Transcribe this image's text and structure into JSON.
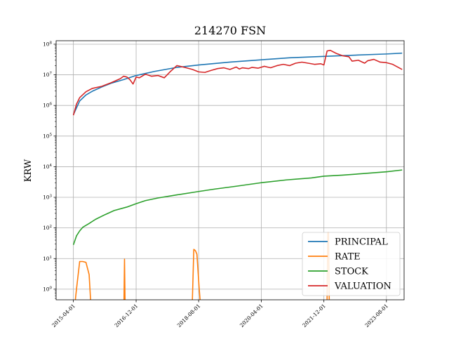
{
  "chart_data": {
    "type": "line",
    "title": "214270 FSN",
    "xlabel": "",
    "ylabel": "KRW",
    "yscale": "log",
    "ylim": [
      0.45,
      130000000
    ],
    "y_tick_values": [
      1,
      10,
      100,
      1000,
      10000,
      100000,
      1000000,
      10000000,
      100000000
    ],
    "y_tick_exponents": [
      "0",
      "1",
      "2",
      "3",
      "4",
      "5",
      "6",
      "7",
      "8"
    ],
    "x_tick_labels": [
      "2015-04-01",
      "2016-12-01",
      "2018-08-01",
      "2020-04-01",
      "2021-12-01",
      "2023-08-01"
    ],
    "xlim": [
      "2014-10-15",
      "2024-01-20"
    ],
    "grid": true,
    "legend_position": "lower-right",
    "series": [
      {
        "name": "PRINCIPAL",
        "color": "#1f77b4",
        "x": [
          "2015-04-01",
          "2015-06-01",
          "2015-08-01",
          "2015-10-01",
          "2016-01-01",
          "2016-04-01",
          "2016-08-01",
          "2016-12-01",
          "2017-06-01",
          "2018-01-01",
          "2018-08-01",
          "2019-06-01",
          "2020-04-01",
          "2021-01-01",
          "2021-12-01",
          "2022-10-01",
          "2023-08-01",
          "2024-01-01"
        ],
        "y": [
          500000,
          1400000,
          2200000,
          2900000,
          4000000,
          5300000,
          7000000,
          9500000,
          13000000,
          17500000,
          21000000,
          26000000,
          31000000,
          36000000,
          40000000,
          44000000,
          48000000,
          51000000
        ]
      },
      {
        "name": "RATE",
        "color": "#ff7f0e",
        "segments": [
          {
            "x": [
              "2015-04-20",
              "2015-05-01",
              "2015-06-01",
              "2015-07-01",
              "2015-08-01",
              "2015-09-01",
              "2015-09-15"
            ],
            "y": [
              0.45,
              1.0,
              8,
              8,
              7.5,
              3,
              0.45
            ]
          },
          {
            "x": [
              "2016-08-05",
              "2016-08-10",
              "2016-08-15"
            ],
            "y": [
              0.45,
              9.5,
              0.45
            ]
          },
          {
            "x": [
              "2018-06-01",
              "2018-06-15",
              "2018-07-01",
              "2018-07-15",
              "2018-08-05",
              "2018-08-15"
            ],
            "y": [
              0.45,
              20,
              18,
              14,
              1.2,
              0.45
            ]
          },
          {
            "x": [
              "2022-01-01",
              "2022-01-08",
              "2022-01-15",
              "2022-01-22"
            ],
            "y": [
              0.45,
              70,
              70,
              0.45
            ]
          }
        ]
      },
      {
        "name": "STOCK",
        "color": "#2ca02c",
        "x": [
          "2015-04-01",
          "2015-05-01",
          "2015-06-01",
          "2015-07-01",
          "2015-09-01",
          "2015-11-01",
          "2016-02-01",
          "2016-05-01",
          "2016-09-01",
          "2016-12-01",
          "2017-03-01",
          "2017-07-01",
          "2018-01-01",
          "2018-08-01",
          "2019-01-01",
          "2019-08-01",
          "2020-04-01",
          "2020-12-01",
          "2021-08-01",
          "2021-12-01",
          "2022-06-01",
          "2023-01-01",
          "2023-08-01",
          "2024-01-01"
        ],
        "y": [
          28,
          55,
          80,
          105,
          140,
          190,
          270,
          370,
          480,
          620,
          780,
          950,
          1200,
          1550,
          1850,
          2300,
          3000,
          3700,
          4300,
          4900,
          5300,
          6000,
          6800,
          7800
        ]
      },
      {
        "name": "VALUATION",
        "color": "#d62728",
        "x": [
          "2015-04-01",
          "2015-05-01",
          "2015-06-01",
          "2015-08-01",
          "2015-10-01",
          "2016-01-01",
          "2016-04-01",
          "2016-07-01",
          "2016-08-01",
          "2016-09-01",
          "2016-10-01",
          "2016-11-01",
          "2016-12-01",
          "2017-01-01",
          "2017-03-01",
          "2017-05-01",
          "2017-07-01",
          "2017-09-01",
          "2017-11-01",
          "2018-01-01",
          "2018-02-01",
          "2018-04-01",
          "2018-06-01",
          "2018-08-01",
          "2018-10-01",
          "2018-12-01",
          "2019-02-01",
          "2019-04-01",
          "2019-06-01",
          "2019-08-01",
          "2019-09-01",
          "2019-10-01",
          "2019-12-01",
          "2020-01-01",
          "2020-03-01",
          "2020-05-01",
          "2020-07-01",
          "2020-09-01",
          "2020-11-01",
          "2021-01-01",
          "2021-03-01",
          "2021-05-01",
          "2021-07-01",
          "2021-09-01",
          "2021-11-01",
          "2021-12-01",
          "2022-01-01",
          "2022-02-01",
          "2022-04-01",
          "2022-06-01",
          "2022-08-01",
          "2022-09-01",
          "2022-11-01",
          "2023-01-01",
          "2023-02-01",
          "2023-04-01",
          "2023-06-01",
          "2023-08-01",
          "2023-10-01",
          "2024-01-01"
        ],
        "y": [
          480000,
          1100000,
          1800000,
          2800000,
          3600000,
          4200000,
          5500000,
          7500000,
          9000000,
          8500000,
          7000000,
          5000000,
          8500000,
          8000000,
          10500000,
          9000000,
          9500000,
          8000000,
          13000000,
          20000000,
          19000000,
          17000000,
          15000000,
          12500000,
          12000000,
          14000000,
          16000000,
          17000000,
          15000000,
          18000000,
          15500000,
          17000000,
          16000000,
          17500000,
          16500000,
          19000000,
          17000000,
          20000000,
          22000000,
          20000000,
          24000000,
          26000000,
          24000000,
          22000000,
          23000000,
          21000000,
          60000000,
          63000000,
          50000000,
          42000000,
          39000000,
          28000000,
          30000000,
          24000000,
          29000000,
          32000000,
          26000000,
          25000000,
          22000000,
          15000000
        ]
      }
    ]
  }
}
